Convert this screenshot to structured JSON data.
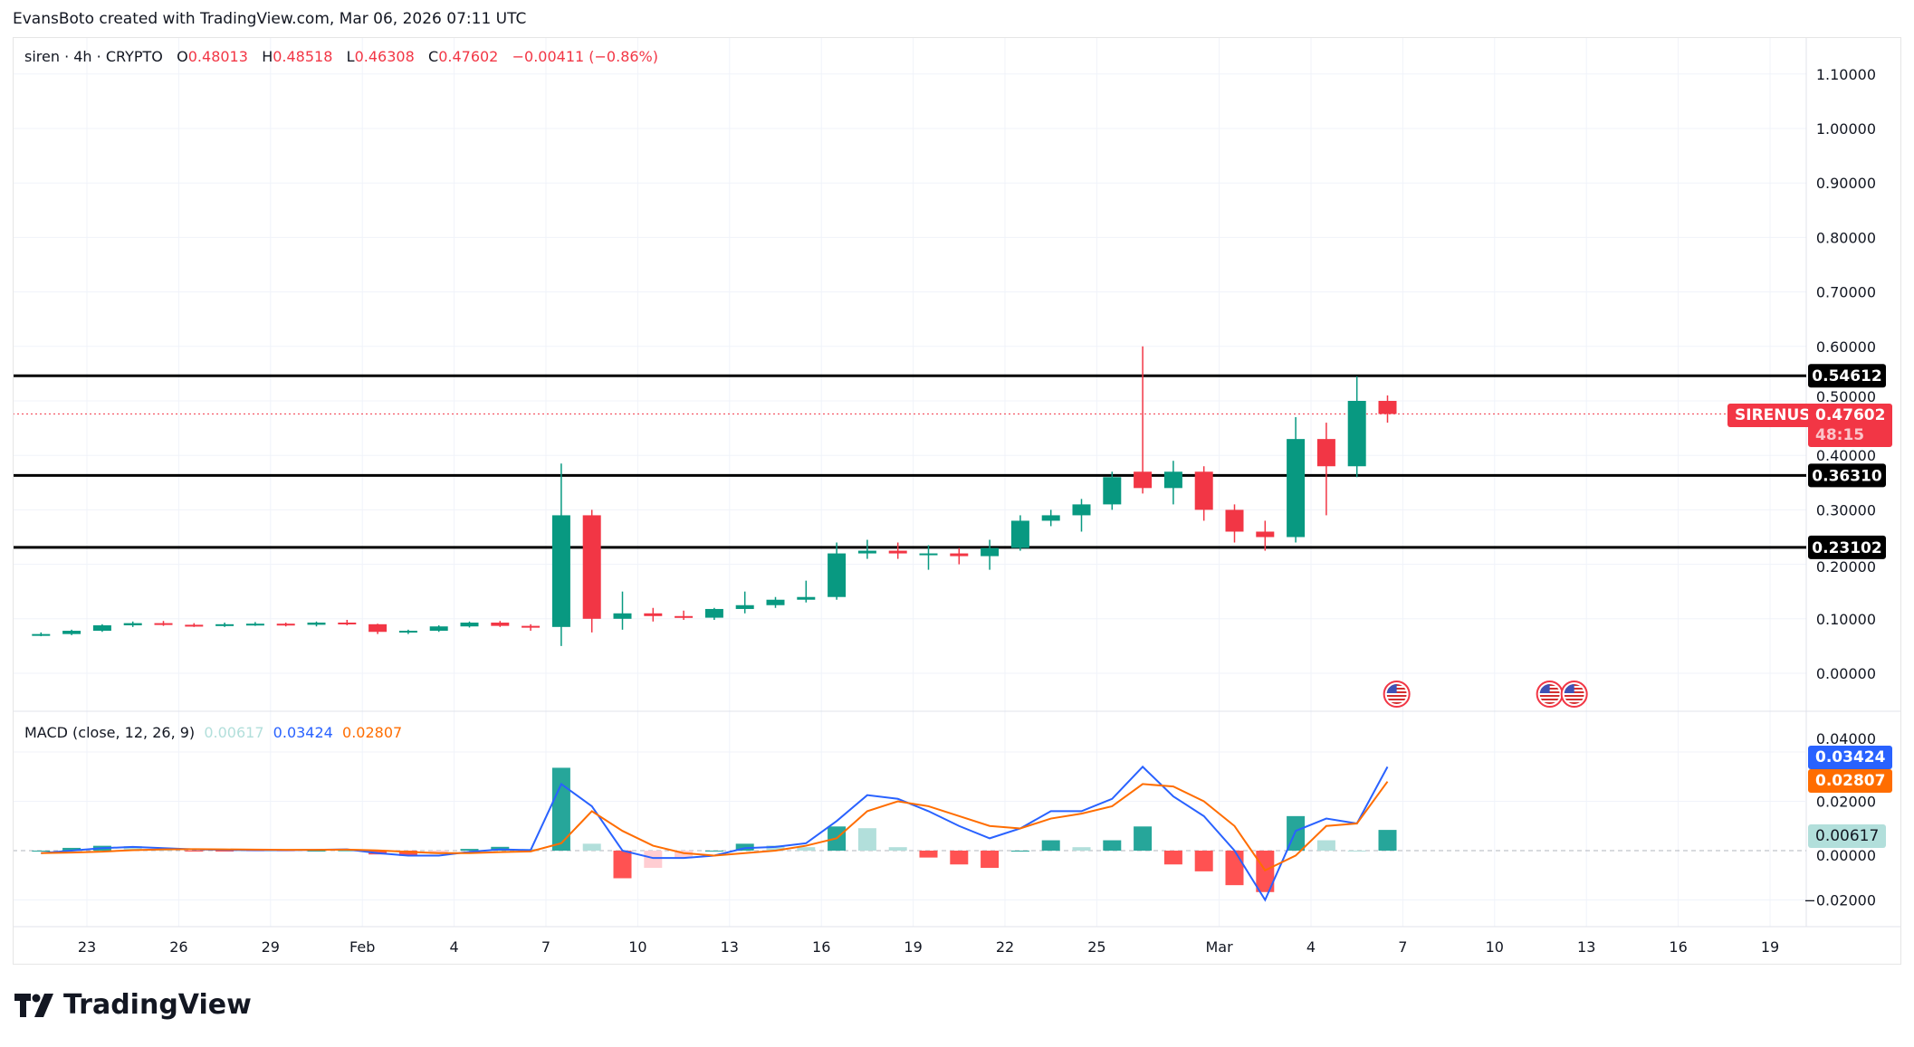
{
  "credit": "EvansBoto created with TradingView.com, Mar 06, 2026 07:11 UTC",
  "legend": {
    "symbol": "siren · 4h · CRYPTO",
    "o_label": "O",
    "o": "0.48013",
    "h_label": "H",
    "h": "0.48518",
    "l_label": "L",
    "l": "0.46308",
    "c_label": "C",
    "c": "0.47602",
    "change": "−0.00411 (−0.86%)"
  },
  "macd_legend": {
    "title": "MACD (close, 12, 26, 9)",
    "hist": "0.00617",
    "macd": "0.03424",
    "signal": "0.02807"
  },
  "price_tag": {
    "symbol": "SIRENUSD",
    "price": "0.47602",
    "countdown": "48:15"
  },
  "hlines": [
    {
      "value": 0.54612,
      "label": "0.54612"
    },
    {
      "value": 0.3631,
      "label": "0.36310"
    },
    {
      "value": 0.23102,
      "label": "0.23102"
    }
  ],
  "colors": {
    "up": "#089981",
    "down": "#f23645",
    "macd": "#2962ff",
    "signal": "#ff6d00",
    "hist_up_strong": "#26a69a",
    "hist_up_weak": "#b2dfdb",
    "hist_dn_strong": "#ff5252",
    "hist_dn_weak": "#ffcdd2",
    "hline": "#000000"
  },
  "logo_text": "TradingView",
  "event_icons": [
    "us-flag-icon",
    "us-flag-icon",
    "us-flag-icon"
  ],
  "chart_data": [
    {
      "type": "candlestick",
      "price_ticks": [
        "1.10000",
        "1.00000",
        "0.90000",
        "0.80000",
        "0.70000",
        "0.60000",
        "0.50000",
        "0.40000",
        "0.30000",
        "0.20000",
        "0.10000",
        "0.00000"
      ],
      "ylim": [
        0,
        1.1
      ],
      "x_ticks": [
        "23",
        "26",
        "29",
        "Feb",
        "4",
        "7",
        "10",
        "13",
        "16",
        "19",
        "22",
        "25",
        "Mar",
        "4",
        "7",
        "10",
        "13",
        "16",
        "19"
      ],
      "x_tick_dates": [
        "2026-01-23",
        "2026-01-26",
        "2026-01-29",
        "2026-02-01",
        "2026-02-04",
        "2026-02-07",
        "2026-02-10",
        "2026-02-13",
        "2026-02-16",
        "2026-02-19",
        "2026-02-22",
        "2026-02-25",
        "2026-03-01",
        "2026-03-04",
        "2026-03-07",
        "2026-03-10",
        "2026-03-13",
        "2026-03-16",
        "2026-03-19"
      ],
      "grid": true,
      "candles": [
        [
          "2026-01-21",
          0.07,
          0.075,
          0.068,
          0.072
        ],
        [
          "2026-01-22",
          0.072,
          0.08,
          0.07,
          0.078
        ],
        [
          "2026-01-23",
          0.078,
          0.09,
          0.076,
          0.088
        ],
        [
          "2026-01-24",
          0.088,
          0.095,
          0.085,
          0.092
        ],
        [
          "2026-01-25",
          0.092,
          0.096,
          0.087,
          0.089
        ],
        [
          "2026-01-26",
          0.089,
          0.092,
          0.085,
          0.088
        ],
        [
          "2026-01-27",
          0.088,
          0.093,
          0.085,
          0.09
        ],
        [
          "2026-01-28",
          0.09,
          0.094,
          0.087,
          0.091
        ],
        [
          "2026-01-29",
          0.091,
          0.093,
          0.086,
          0.089
        ],
        [
          "2026-01-30",
          0.089,
          0.095,
          0.086,
          0.093
        ],
        [
          "2026-01-31",
          0.093,
          0.098,
          0.088,
          0.09
        ],
        [
          "2026-02-01",
          0.09,
          0.091,
          0.072,
          0.076
        ],
        [
          "2026-02-02",
          0.076,
          0.08,
          0.072,
          0.078
        ],
        [
          "2026-02-03",
          0.078,
          0.088,
          0.076,
          0.086
        ],
        [
          "2026-02-04",
          0.086,
          0.095,
          0.084,
          0.093
        ],
        [
          "2026-02-05",
          0.093,
          0.096,
          0.085,
          0.087
        ],
        [
          "2026-02-06",
          0.087,
          0.09,
          0.078,
          0.085
        ],
        [
          "2026-02-07",
          0.085,
          0.385,
          0.05,
          0.29
        ],
        [
          "2026-02-08",
          0.29,
          0.3,
          0.075,
          0.1
        ],
        [
          "2026-02-09",
          0.1,
          0.15,
          0.08,
          0.11
        ],
        [
          "2026-02-10",
          0.11,
          0.12,
          0.095,
          0.105
        ],
        [
          "2026-02-11",
          0.105,
          0.115,
          0.098,
          0.102
        ],
        [
          "2026-02-12",
          0.102,
          0.12,
          0.098,
          0.118
        ],
        [
          "2026-02-13",
          0.118,
          0.15,
          0.11,
          0.125
        ],
        [
          "2026-02-14",
          0.125,
          0.14,
          0.12,
          0.135
        ],
        [
          "2026-02-15",
          0.135,
          0.17,
          0.13,
          0.14
        ],
        [
          "2026-02-16",
          0.14,
          0.24,
          0.135,
          0.22
        ],
        [
          "2026-02-17",
          0.22,
          0.245,
          0.21,
          0.225
        ],
        [
          "2026-02-18",
          0.225,
          0.24,
          0.21,
          0.22
        ],
        [
          "2026-02-19",
          0.22,
          0.235,
          0.19,
          0.22
        ],
        [
          "2026-02-20",
          0.22,
          0.23,
          0.2,
          0.215
        ],
        [
          "2026-02-21",
          0.215,
          0.245,
          0.19,
          0.23
        ],
        [
          "2026-02-22",
          0.23,
          0.29,
          0.225,
          0.28
        ],
        [
          "2026-02-23",
          0.28,
          0.3,
          0.27,
          0.29
        ],
        [
          "2026-02-24",
          0.29,
          0.32,
          0.26,
          0.31
        ],
        [
          "2026-02-25",
          0.31,
          0.37,
          0.3,
          0.36
        ],
        [
          "2026-02-26",
          0.37,
          0.6,
          0.33,
          0.34
        ],
        [
          "2026-02-27",
          0.34,
          0.39,
          0.31,
          0.37
        ],
        [
          "2026-02-28",
          0.37,
          0.38,
          0.28,
          0.3
        ],
        [
          "2026-03-01",
          0.3,
          0.31,
          0.24,
          0.26
        ],
        [
          "2026-03-02",
          0.26,
          0.28,
          0.225,
          0.25
        ],
        [
          "2026-03-03",
          0.25,
          0.47,
          0.24,
          0.43
        ],
        [
          "2026-03-04",
          0.43,
          0.46,
          0.29,
          0.38
        ],
        [
          "2026-03-05",
          0.38,
          0.545,
          0.36,
          0.5
        ],
        [
          "2026-03-06",
          0.5,
          0.51,
          0.46,
          0.476
        ]
      ]
    },
    {
      "type": "line",
      "title": "MACD (close, 12, 26, 9)",
      "y_ticks": [
        "0.04000",
        "0.02000",
        "0.00000",
        "−0.02000"
      ],
      "ylim": [
        -0.025,
        0.045
      ],
      "dates": [
        "2026-01-21",
        "2026-01-22",
        "2026-01-23",
        "2026-01-24",
        "2026-01-25",
        "2026-01-26",
        "2026-01-27",
        "2026-01-28",
        "2026-01-29",
        "2026-01-30",
        "2026-01-31",
        "2026-02-01",
        "2026-02-02",
        "2026-02-03",
        "2026-02-04",
        "2026-02-05",
        "2026-02-06",
        "2026-02-07",
        "2026-02-08",
        "2026-02-09",
        "2026-02-10",
        "2026-02-11",
        "2026-02-12",
        "2026-02-13",
        "2026-02-14",
        "2026-02-15",
        "2026-02-16",
        "2026-02-17",
        "2026-02-18",
        "2026-02-19",
        "2026-02-20",
        "2026-02-21",
        "2026-02-22",
        "2026-02-23",
        "2026-02-24",
        "2026-02-25",
        "2026-02-26",
        "2026-02-27",
        "2026-02-28",
        "2026-03-01",
        "2026-03-02",
        "2026-03-03",
        "2026-03-04",
        "2026-03-05",
        "2026-03-06"
      ],
      "series": [
        {
          "key": "macd",
          "values": [
            -0.001,
            0,
            0.001,
            0.0015,
            0.001,
            0.0005,
            0.0003,
            0.0002,
            0.0002,
            0.0003,
            0.0005,
            -0.001,
            -0.002,
            -0.002,
            -0.0005,
            0.0005,
            0.0002,
            0.027,
            0.018,
            0.0,
            -0.003,
            -0.003,
            -0.002,
            0.001,
            0.0015,
            0.003,
            0.012,
            0.0225,
            0.021,
            0.016,
            0.01,
            0.005,
            0.009,
            0.016,
            0.016,
            0.021,
            0.034,
            0.022,
            0.014,
            0.0,
            -0.02,
            0.008,
            0.013,
            0.011,
            0.034
          ]
        },
        {
          "key": "signal",
          "values": [
            -0.001,
            -0.0008,
            -0.0004,
            0.0002,
            0.0005,
            0.0006,
            0.0005,
            0.0004,
            0.0003,
            0.0003,
            0.0004,
            0.0001,
            -0.0005,
            -0.001,
            -0.001,
            -0.0006,
            -0.0003,
            0.003,
            0.016,
            0.008,
            0.002,
            -0.001,
            -0.002,
            -0.001,
            0.0,
            0.002,
            0.005,
            0.016,
            0.02,
            0.018,
            0.014,
            0.01,
            0.009,
            0.013,
            0.015,
            0.018,
            0.027,
            0.026,
            0.02,
            0.01,
            -0.008,
            -0.002,
            0.01,
            0.011,
            0.028
          ]
        }
      ]
    }
  ]
}
